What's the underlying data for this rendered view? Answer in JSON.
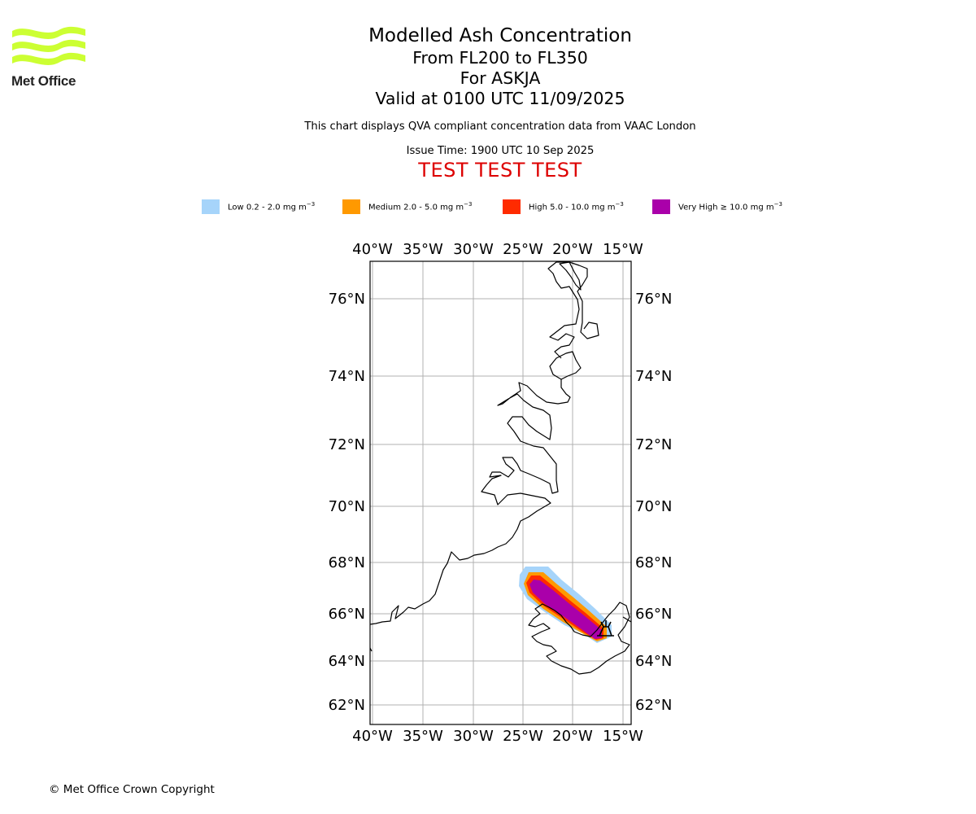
{
  "logo": {
    "icon": "met-office-waves-icon",
    "text": "Met Office",
    "color": "#ccff33"
  },
  "title": {
    "line1": "Modelled Ash Concentration",
    "line2": "From FL200 to FL350",
    "line3": "For ASKJA",
    "line4": "Valid at 0100 UTC 11/09/2025"
  },
  "notes": {
    "compliance": "This chart displays QVA compliant concentration data from VAAC London",
    "issue_time": "Issue Time: 1900 UTC 10 Sep 2025",
    "test_banner": "TEST TEST TEST"
  },
  "legend": [
    {
      "label": "Low 0.2 - 2.0 mg m",
      "unit_exp": "−3",
      "color": "#a6d4fa"
    },
    {
      "label": "Medium 2.0 - 5.0 mg m",
      "unit_exp": "−3",
      "color": "#ff9900"
    },
    {
      "label": "High 5.0 - 10.0 mg m",
      "unit_exp": "−3",
      "color": "#ff2b00"
    },
    {
      "label": "Very High ≥ 10.0 mg m",
      "unit_exp": "−3",
      "color": "#aa00aa"
    }
  ],
  "map": {
    "lon_ticks": [
      "40°W",
      "35°W",
      "30°W",
      "25°W",
      "20°W",
      "15°W"
    ],
    "lat_ticks": [
      "76°N",
      "74°N",
      "72°N",
      "70°N",
      "68°N",
      "66°N",
      "64°N",
      "62°N"
    ],
    "volcano_icon": "volcano-symbol-icon",
    "plume_icon": "ash-plume"
  },
  "footer": {
    "copyright": "© Met Office Crown Copyright"
  }
}
